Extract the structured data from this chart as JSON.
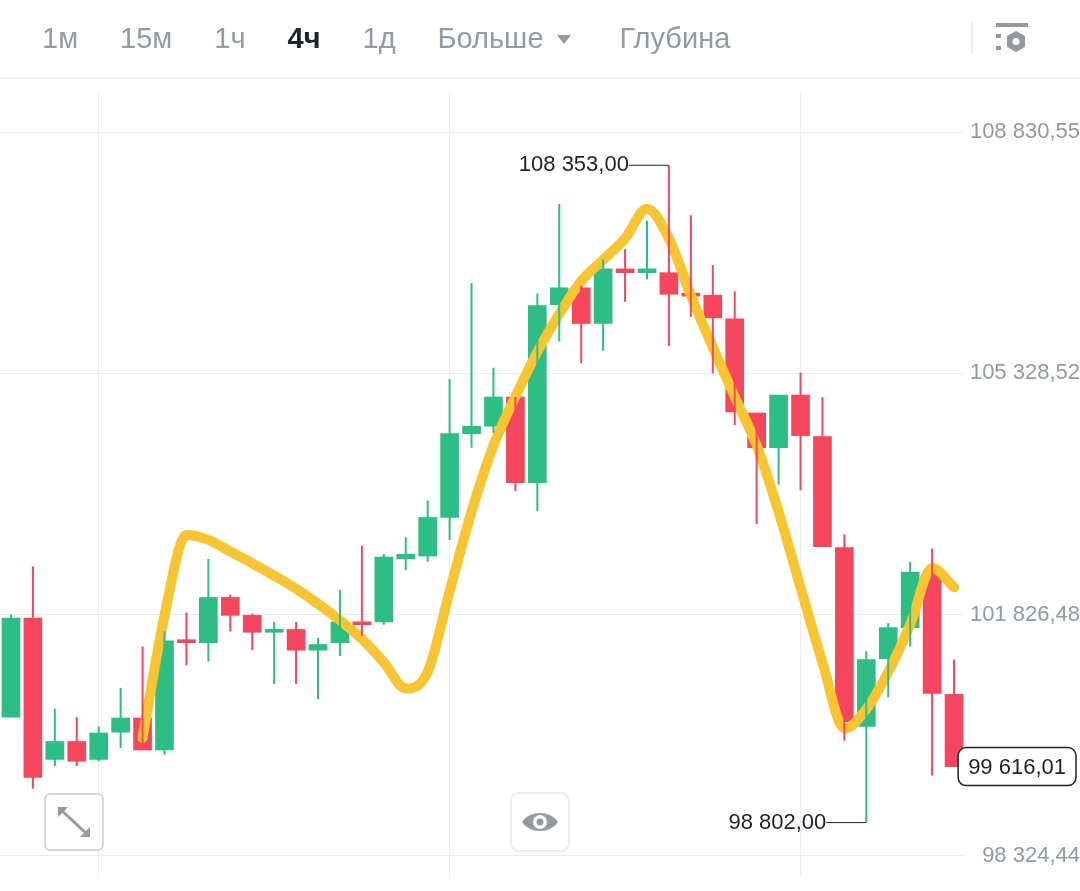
{
  "chart_data": {
    "type": "candlestick",
    "categories": [
      null,
      null,
      null,
      null,
      null,
      null,
      null,
      null,
      null,
      null,
      null,
      null,
      null,
      null,
      null,
      null,
      null,
      null,
      null,
      null,
      null,
      null,
      null,
      null,
      null,
      null,
      null,
      null,
      null,
      null,
      null,
      null,
      null,
      null,
      null,
      null,
      null,
      null,
      null,
      null,
      null,
      null,
      null,
      null
    ],
    "ohlc": [
      [
        100335,
        101826,
        100335,
        101772
      ],
      [
        101772,
        102524,
        99296,
        99460
      ],
      [
        99720,
        100459,
        99624,
        99980
      ],
      [
        99980,
        100335,
        99624,
        99693
      ],
      [
        99720,
        100199,
        99693,
        100103
      ],
      [
        100116,
        100760,
        99884,
        100322
      ],
      [
        100322,
        101361,
        99857,
        99857
      ],
      [
        99857,
        101580,
        99788,
        101444
      ],
      [
        101444,
        101854,
        101088,
        101416
      ],
      [
        101416,
        102633,
        101143,
        102073
      ],
      [
        102073,
        102114,
        101580,
        101813
      ],
      [
        101813,
        101840,
        101307,
        101567
      ],
      [
        101567,
        101717,
        100814,
        101608
      ],
      [
        101608,
        101717,
        100814,
        101307
      ],
      [
        101307,
        101484,
        100595,
        101389
      ],
      [
        101416,
        102182,
        101224,
        101717
      ],
      [
        101717,
        102825,
        101512,
        101676
      ],
      [
        101717,
        102702,
        101676,
        102661
      ],
      [
        102633,
        102948,
        102469,
        102702
      ],
      [
        102675,
        103482,
        102592,
        103235
      ],
      [
        103235,
        105246,
        102907,
        104453
      ],
      [
        104453,
        106642,
        104248,
        104562
      ],
      [
        104562,
        105411,
        104466,
        104986
      ],
      [
        104986,
        104986,
        103619,
        103741
      ],
      [
        103741,
        106491,
        103331,
        106313
      ],
      [
        106327,
        107791,
        105794,
        106573
      ],
      [
        106573,
        106601,
        105479,
        106054
      ],
      [
        106054,
        106984,
        105657,
        106847
      ],
      [
        106847,
        107134,
        106368,
        106792
      ],
      [
        106792,
        107545,
        106696,
        106847
      ],
      [
        106792,
        108353,
        105725,
        106478
      ],
      [
        106478,
        107627,
        106149,
        106450
      ],
      [
        106464,
        106902,
        105329,
        106136
      ],
      [
        106122,
        106519,
        104576,
        104768
      ],
      [
        104754,
        104754,
        103140,
        104248
      ],
      [
        104248,
        105014,
        103714,
        105014
      ],
      [
        105014,
        105342,
        103632,
        104425
      ],
      [
        104412,
        104986,
        102811,
        102811
      ],
      [
        102798,
        102989,
        99993,
        100267
      ],
      [
        100199,
        101293,
        98802,
        101170
      ],
      [
        101183,
        101703,
        100623,
        101635
      ],
      [
        101635,
        102592,
        101361,
        102442
      ],
      [
        102428,
        102784,
        99487,
        100678
      ],
      [
        100664,
        101170,
        99616.01,
        99616.01
      ]
    ],
    "colors": [
      "#2ebd85",
      "#f6465d",
      "#2ebd85",
      "#f6465d",
      "#2ebd85",
      "#2ebd85",
      "#f6465d",
      "#2ebd85",
      "#f6465d",
      "#2ebd85",
      "#f6465d",
      "#f6465d",
      "#2ebd85",
      "#f6465d",
      "#2ebd85",
      "#2ebd85",
      "#f6465d",
      "#2ebd85",
      "#2ebd85",
      "#2ebd85",
      "#2ebd85",
      "#2ebd85",
      "#2ebd85",
      "#f6465d",
      "#2ebd85",
      "#2ebd85",
      "#f6465d",
      "#2ebd85",
      "#f6465d",
      "#2ebd85",
      "#f6465d",
      "#f6465d",
      "#f6465d",
      "#f6465d",
      "#f6465d",
      "#2ebd85",
      "#f6465d",
      "#f6465d",
      "#f6465d",
      "#2ebd85",
      "#2ebd85",
      "#2ebd85",
      "#f6465d",
      "#f6465d"
    ],
    "series": [
      {
        "type": "line",
        "color": "#f7c531",
        "values": [
          null,
          null,
          null,
          null,
          null,
          null,
          100030,
          101810,
          102980,
          102910,
          102740,
          102570,
          102390,
          102200,
          101980,
          101740,
          101470,
          101130,
          100750,
          100990,
          102160,
          103320,
          104280,
          104990,
          105640,
          106190,
          106670,
          106980,
          107290,
          107720,
          107290,
          106460,
          105710,
          104990,
          104280,
          103320,
          102220,
          101130,
          100170,
          100450,
          100990,
          101680,
          102500,
          102220
        ]
      }
    ],
    "ylim": [
      98000,
      109400
    ],
    "yticks": [
      {
        "value": 98324.44,
        "label": "98 324,44"
      },
      {
        "value": 101826.48,
        "label": "101 826,48"
      },
      {
        "value": 105328.52,
        "label": "105 328,52"
      },
      {
        "value": 108830.55,
        "label": "108 830,55"
      }
    ],
    "grid": true,
    "tick_labels": "y",
    "annotations": [
      "1м",
      "15м",
      "1ч",
      "4ч",
      "1д",
      "Больше",
      "Глубина",
      "108 353,00",
      "98 802,00",
      "99 616,01"
    ]
  }
}
